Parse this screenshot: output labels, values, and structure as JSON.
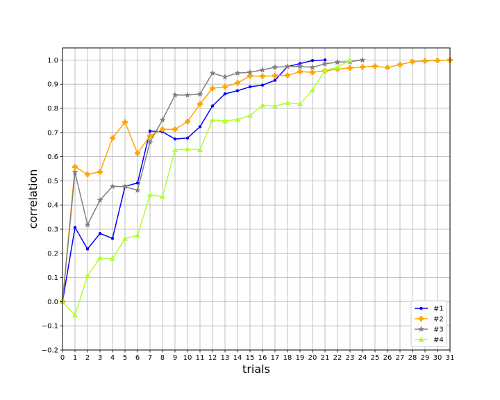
{
  "chart_data": {
    "type": "line",
    "xlabel": "trials",
    "ylabel": "correlation",
    "xlim": [
      0,
      31
    ],
    "ylim": [
      -0.2,
      1.05
    ],
    "xticks": [
      0,
      1,
      2,
      3,
      4,
      5,
      6,
      7,
      8,
      9,
      10,
      11,
      12,
      13,
      14,
      15,
      16,
      17,
      18,
      19,
      20,
      21,
      22,
      23,
      24,
      25,
      26,
      27,
      28,
      29,
      30,
      31
    ],
    "yticks": [
      -0.2,
      -0.1,
      0.0,
      0.1,
      0.2,
      0.3,
      0.4,
      0.5,
      0.6,
      0.7,
      0.8,
      0.9,
      1.0
    ],
    "ytick_labels": [
      "−0.2",
      "−0.1",
      "0.0",
      "0.1",
      "0.2",
      "0.3",
      "0.4",
      "0.5",
      "0.6",
      "0.7",
      "0.8",
      "0.9",
      "1.0"
    ],
    "grid": true,
    "legend_position": "bottom-right",
    "series": [
      {
        "name": "#1",
        "color": "#0000ff",
        "marker": "dot",
        "x": [
          0,
          1,
          2,
          3,
          4,
          5,
          6,
          7,
          8,
          9,
          10,
          11,
          12,
          13,
          14,
          15,
          16,
          17,
          18,
          19,
          20,
          21
        ],
        "values": [
          0.0,
          0.307,
          0.218,
          0.282,
          0.262,
          0.477,
          0.491,
          0.706,
          0.703,
          0.673,
          0.677,
          0.724,
          0.81,
          0.86,
          0.873,
          0.889,
          0.896,
          0.916,
          0.973,
          0.985,
          0.998,
          1.0
        ]
      },
      {
        "name": "#2",
        "color": "#ffa500",
        "marker": "plus",
        "x": [
          0,
          1,
          2,
          3,
          4,
          5,
          6,
          7,
          8,
          9,
          10,
          11,
          12,
          13,
          14,
          15,
          16,
          17,
          18,
          19,
          20,
          21,
          22,
          23,
          24,
          25,
          26,
          27,
          28,
          29,
          30,
          31
        ],
        "values": [
          0.0,
          0.558,
          0.527,
          0.537,
          0.677,
          0.743,
          0.614,
          0.686,
          0.713,
          0.713,
          0.745,
          0.818,
          0.883,
          0.889,
          0.905,
          0.934,
          0.933,
          0.935,
          0.936,
          0.952,
          0.949,
          0.955,
          0.962,
          0.967,
          0.971,
          0.974,
          0.969,
          0.981,
          0.993,
          0.996,
          0.998,
          1.0
        ]
      },
      {
        "name": "#3",
        "color": "#808080",
        "marker": "star",
        "x": [
          0,
          1,
          2,
          3,
          4,
          5,
          6,
          7,
          8,
          9,
          10,
          11,
          12,
          13,
          14,
          15,
          16,
          17,
          18,
          19,
          20,
          21,
          22,
          23,
          24
        ],
        "values": [
          0.0,
          0.535,
          0.318,
          0.42,
          0.477,
          0.476,
          0.461,
          0.661,
          0.752,
          0.855,
          0.855,
          0.859,
          0.946,
          0.93,
          0.946,
          0.949,
          0.959,
          0.97,
          0.973,
          0.973,
          0.97,
          0.984,
          0.991,
          0.993,
          1.0
        ]
      },
      {
        "name": "#4",
        "color": "#adff2f",
        "marker": "triangle",
        "x": [
          0,
          1,
          2,
          3,
          4,
          5,
          6,
          7,
          8,
          9,
          10,
          11,
          12,
          13,
          14,
          15,
          16,
          17,
          18,
          19,
          20,
          21,
          22,
          23
        ],
        "values": [
          0.0,
          -0.056,
          0.107,
          0.181,
          0.178,
          0.261,
          0.274,
          0.442,
          0.435,
          0.628,
          0.632,
          0.628,
          0.752,
          0.748,
          0.754,
          0.77,
          0.813,
          0.809,
          0.823,
          0.818,
          0.876,
          0.957,
          0.97,
          1.0
        ]
      }
    ]
  }
}
